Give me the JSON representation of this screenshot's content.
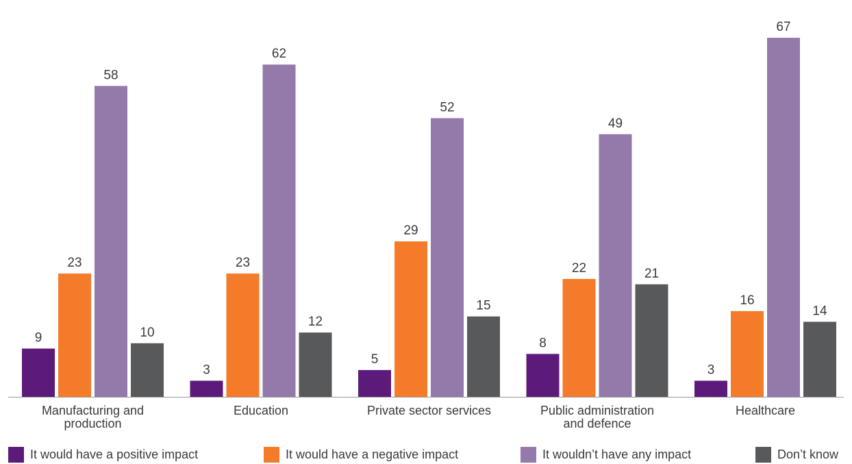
{
  "chart_data": {
    "type": "bar",
    "categories": [
      [
        "Manufacturing and",
        "production"
      ],
      [
        "Education"
      ],
      [
        "Private sector services"
      ],
      [
        "Public administration",
        "and defence"
      ],
      [
        "Healthcare"
      ]
    ],
    "series": [
      {
        "name": "It would have a positive impact",
        "color": "#5c1a7a",
        "values": [
          9,
          3,
          5,
          8,
          3
        ]
      },
      {
        "name": "It would have a negative impact",
        "color": "#f47b2a",
        "values": [
          23,
          23,
          29,
          22,
          16
        ]
      },
      {
        "name": "It wouldn’t have any impact",
        "color": "#9479ab",
        "values": [
          58,
          62,
          52,
          49,
          67
        ]
      },
      {
        "name": "Don’t know",
        "color": "#58595b",
        "values": [
          10,
          12,
          15,
          21,
          14
        ]
      }
    ],
    "title": "",
    "xlabel": "",
    "ylabel": "",
    "ylim": [
      0,
      67
    ],
    "grid": false,
    "data_labels": true,
    "legend_position": "bottom",
    "axis_color": "#9a9a9a",
    "label_color": "#3a3a3a"
  }
}
